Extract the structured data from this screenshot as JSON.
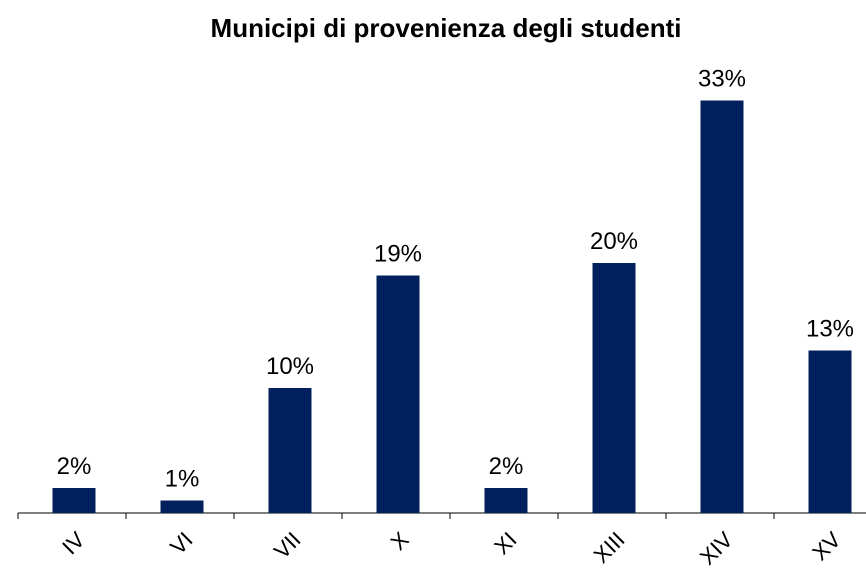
{
  "chart_data": {
    "type": "bar",
    "title": "Municipi di provenienza degli studenti",
    "categories": [
      "IV",
      "VI",
      "VII",
      "X",
      "XI",
      "XIII",
      "XIV",
      "XV"
    ],
    "values": [
      2,
      1,
      10,
      19,
      2,
      20,
      33,
      13
    ],
    "value_labels": [
      "2%",
      "1%",
      "10%",
      "19%",
      "2%",
      "20%",
      "33%",
      "13%"
    ],
    "color": "#02205e",
    "ylim": [
      0,
      34
    ]
  }
}
